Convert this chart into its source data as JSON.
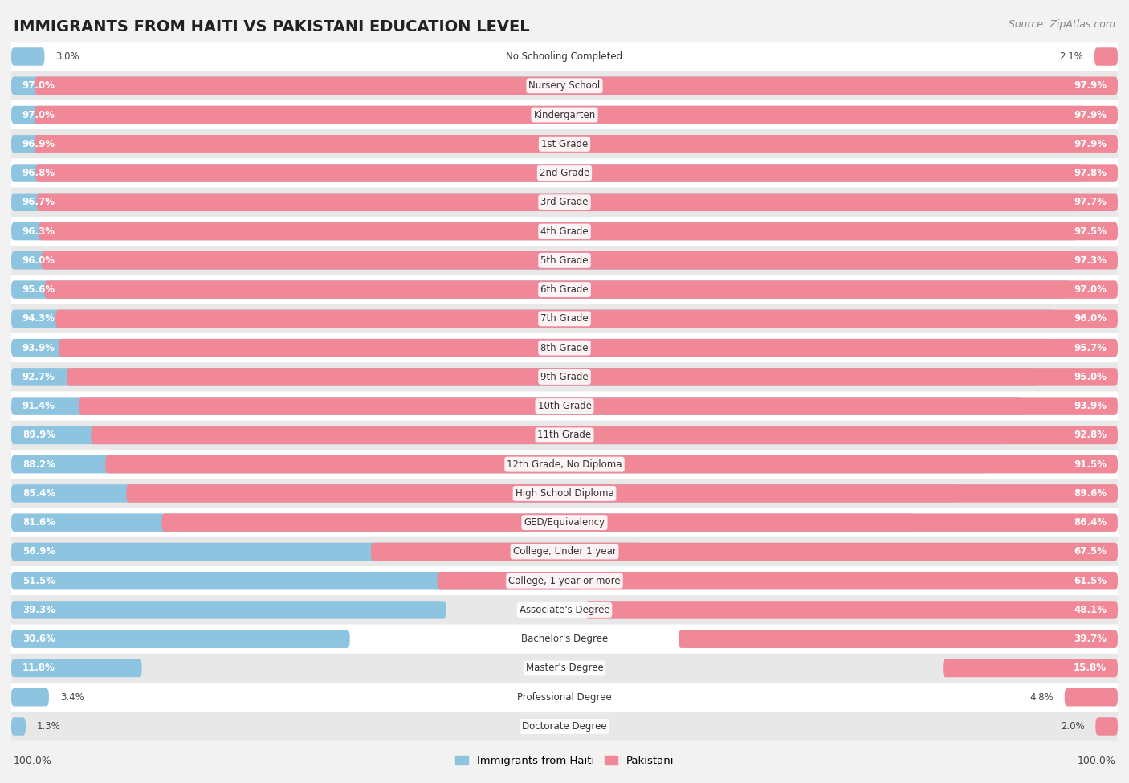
{
  "title": "IMMIGRANTS FROM HAITI VS PAKISTANI EDUCATION LEVEL",
  "source": "Source: ZipAtlas.com",
  "categories": [
    "No Schooling Completed",
    "Nursery School",
    "Kindergarten",
    "1st Grade",
    "2nd Grade",
    "3rd Grade",
    "4th Grade",
    "5th Grade",
    "6th Grade",
    "7th Grade",
    "8th Grade",
    "9th Grade",
    "10th Grade",
    "11th Grade",
    "12th Grade, No Diploma",
    "High School Diploma",
    "GED/Equivalency",
    "College, Under 1 year",
    "College, 1 year or more",
    "Associate's Degree",
    "Bachelor's Degree",
    "Master's Degree",
    "Professional Degree",
    "Doctorate Degree"
  ],
  "haiti_values": [
    3.0,
    97.0,
    97.0,
    96.9,
    96.8,
    96.7,
    96.3,
    96.0,
    95.6,
    94.3,
    93.9,
    92.7,
    91.4,
    89.9,
    88.2,
    85.4,
    81.6,
    56.9,
    51.5,
    39.3,
    30.6,
    11.8,
    3.4,
    1.3
  ],
  "pakistani_values": [
    2.1,
    97.9,
    97.9,
    97.9,
    97.8,
    97.7,
    97.5,
    97.3,
    97.0,
    96.0,
    95.7,
    95.0,
    93.9,
    92.8,
    91.5,
    89.6,
    86.4,
    67.5,
    61.5,
    48.1,
    39.7,
    15.8,
    4.8,
    2.0
  ],
  "haiti_color": "#8DC4E0",
  "pakistani_color": "#F08898",
  "background_color": "#f2f2f2",
  "row_even_color": "#ffffff",
  "row_odd_color": "#e8e8e8",
  "title_fontsize": 14,
  "label_fontsize": 8.5,
  "value_fontsize": 8.5,
  "legend_fontsize": 9.5,
  "footer_fontsize": 9
}
